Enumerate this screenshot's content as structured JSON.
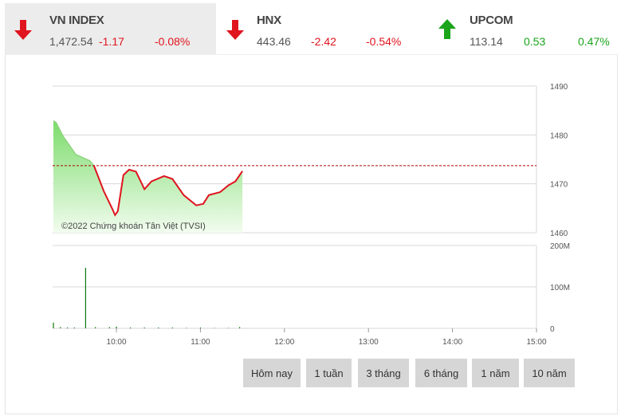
{
  "indices": [
    {
      "name": "VN INDEX",
      "value": "1,472.54",
      "change": "-1.17",
      "percent": "-0.08%",
      "direction": "down",
      "icon": "arrow-down-icon",
      "active": true
    },
    {
      "name": "HNX",
      "value": "443.46",
      "change": "-2.42",
      "percent": "-0.54%",
      "direction": "down",
      "icon": "arrow-down-icon",
      "active": false
    },
    {
      "name": "UPCOM",
      "value": "113.14",
      "change": "0.53",
      "percent": "0.47%",
      "direction": "up",
      "icon": "arrow-up-icon",
      "active": false
    }
  ],
  "colors": {
    "down": "#e0141e",
    "up": "#1aa51a",
    "fill": "#8fe07f",
    "reference_line": "#b00000",
    "volume": "#0a7a0a"
  },
  "chart_data": {
    "type": "area",
    "watermark": "©2022 Chứng khoán Tân Việt (TVSI)",
    "reference_price": 1473.71,
    "price_axis": {
      "ticks": [
        "1490",
        "1480",
        "1470",
        "1460"
      ],
      "range": [
        1460,
        1490
      ]
    },
    "volume_axis": {
      "ticks": [
        "200M",
        "100M",
        "0"
      ],
      "range": [
        0,
        200
      ]
    },
    "time_axis": {
      "ticks": [
        "10:00",
        "11:00",
        "12:00",
        "13:00",
        "14:00",
        "15:00"
      ],
      "range": [
        "09:15",
        "15:00"
      ]
    },
    "price": [
      [
        "09:15",
        1482.9
      ],
      [
        "09:17",
        1482.5
      ],
      [
        "09:22",
        1479.7
      ],
      [
        "09:31",
        1476.0
      ],
      [
        "09:41",
        1474.7
      ],
      [
        "09:44",
        1473.7
      ],
      [
        "09:51",
        1468.5
      ],
      [
        "09:57",
        1464.9
      ],
      [
        "09:59",
        1463.6
      ],
      [
        "10:01",
        1464.4
      ],
      [
        "10:05",
        1471.8
      ],
      [
        "10:09",
        1472.9
      ],
      [
        "10:14",
        1472.5
      ],
      [
        "10:20",
        1468.9
      ],
      [
        "10:25",
        1470.5
      ],
      [
        "10:34",
        1471.6
      ],
      [
        "10:40",
        1471.0
      ],
      [
        "10:48",
        1467.7
      ],
      [
        "10:57",
        1465.6
      ],
      [
        "11:02",
        1465.9
      ],
      [
        "11:06",
        1467.7
      ],
      [
        "11:14",
        1468.3
      ],
      [
        "11:20",
        1469.7
      ],
      [
        "11:25",
        1470.5
      ],
      [
        "11:30",
        1472.6
      ]
    ],
    "volume_millions": [
      [
        "09:15",
        14
      ],
      [
        "09:20",
        3
      ],
      [
        "09:25",
        2
      ],
      [
        "09:30",
        2
      ],
      [
        "09:38",
        146
      ],
      [
        "09:45",
        3
      ],
      [
        "09:55",
        3
      ],
      [
        "10:00",
        4
      ],
      [
        "10:10",
        2
      ],
      [
        "10:20",
        2
      ],
      [
        "10:30",
        2
      ],
      [
        "10:40",
        2
      ],
      [
        "10:50",
        1
      ],
      [
        "11:00",
        2
      ],
      [
        "11:10",
        1
      ],
      [
        "11:20",
        1
      ],
      [
        "11:28",
        3
      ]
    ]
  },
  "ranges": [
    "Hôm nay",
    "1 tuần",
    "3 tháng",
    "6 tháng",
    "1 năm",
    "10 năm"
  ]
}
